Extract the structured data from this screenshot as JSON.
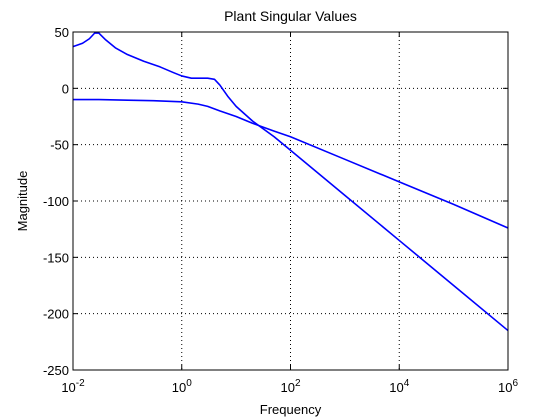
{
  "chart_data": {
    "type": "line",
    "title": "Plant Singular Values",
    "xlabel": "Frequency",
    "ylabel": "Magnitude",
    "xscale": "log",
    "xlim": [
      0.01,
      1000000
    ],
    "ylim": [
      -250,
      50
    ],
    "grid": true,
    "line_color": "#0000ff",
    "x_ticks": [
      {
        "value": 0.01,
        "base": "10",
        "exp": "-2"
      },
      {
        "value": 1,
        "base": "10",
        "exp": "0"
      },
      {
        "value": 100,
        "base": "10",
        "exp": "2"
      },
      {
        "value": 10000,
        "base": "10",
        "exp": "4"
      },
      {
        "value": 1000000,
        "base": "10",
        "exp": "6"
      }
    ],
    "y_ticks": [
      50,
      0,
      -50,
      -100,
      -150,
      -200,
      -250
    ],
    "series": [
      {
        "x": [
          0.01,
          0.015,
          0.02,
          0.025,
          0.03,
          0.04,
          0.06,
          0.1,
          0.2,
          0.4,
          0.7,
          1,
          1.5,
          2,
          3,
          4,
          5,
          7,
          10,
          20,
          50,
          100,
          1000,
          10000,
          100000,
          1000000
        ],
        "y": [
          37,
          40,
          44,
          49,
          49,
          43,
          36,
          30,
          24,
          19,
          14,
          11,
          9,
          9,
          9,
          8,
          3,
          -7,
          -16,
          -29,
          -43,
          -55,
          -95,
          -135,
          -175,
          -215
        ]
      },
      {
        "x": [
          0.01,
          0.03,
          0.1,
          0.3,
          1,
          2,
          3,
          5,
          10,
          20,
          50,
          100,
          1000,
          10000,
          100000,
          1000000
        ],
        "y": [
          -10,
          -10,
          -10.5,
          -11,
          -12,
          -14,
          -16,
          -20,
          -25,
          -31,
          -38,
          -43,
          -63,
          -83,
          -103,
          -124
        ]
      }
    ]
  }
}
